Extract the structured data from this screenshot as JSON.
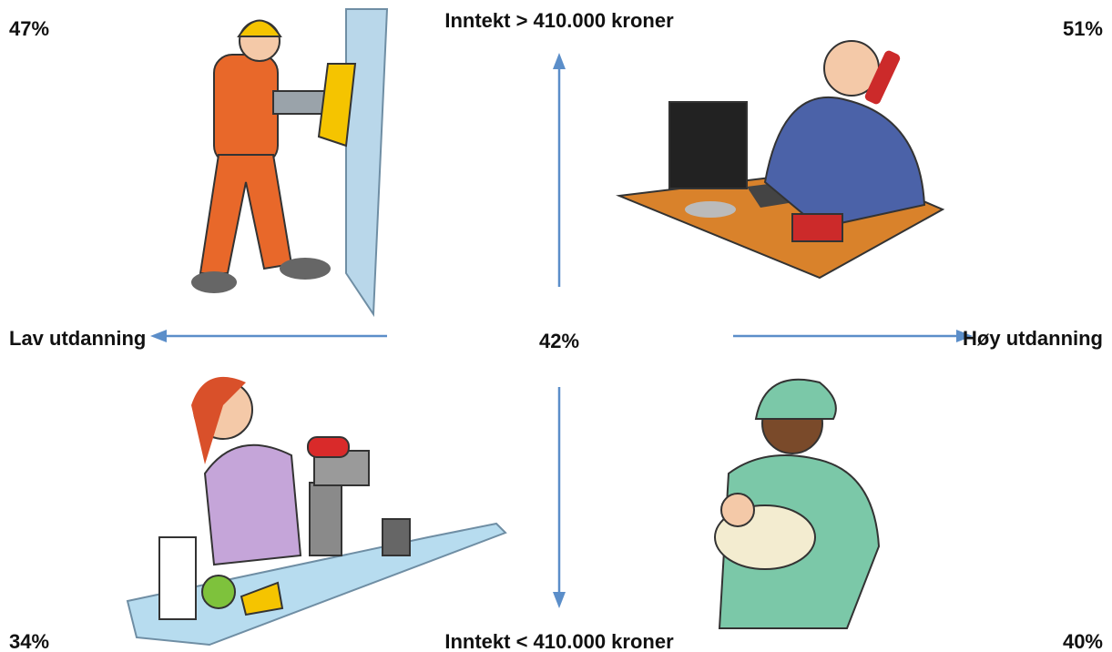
{
  "axes": {
    "top": "Inntekt > 410.000 kroner",
    "bottom": "Inntekt < 410.000 kroner",
    "left": "Lav utdanning",
    "right": "Høy utdanning"
  },
  "center": "42%",
  "quadrants": {
    "top_left": "47%",
    "top_right": "51%",
    "bottom_left": "34%",
    "bottom_right": "40%"
  }
}
